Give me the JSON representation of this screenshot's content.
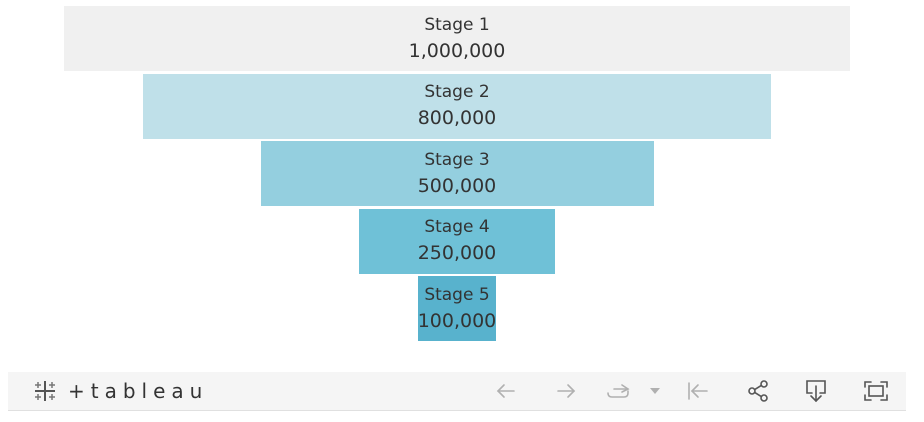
{
  "chart_data": {
    "type": "funnel",
    "categories": [
      "Stage 1",
      "Stage 2",
      "Stage 3",
      "Stage 4",
      "Stage 5"
    ],
    "values": [
      1000000,
      800000,
      500000,
      250000,
      100000
    ],
    "value_labels": [
      "1,000,000",
      "800,000",
      "500,000",
      "250,000",
      "100,000"
    ],
    "colors": [
      "#f0f0f0",
      "#bfe0e9",
      "#94cfdf",
      "#6fc1d7",
      "#58b2cd"
    ],
    "label_color": "#333333"
  },
  "toolbar": {
    "brand": "tableau",
    "icons": {
      "logo": "tableau-logo-icon",
      "undo": "undo-arrow-icon",
      "redo": "redo-arrow-icon",
      "revert": "revert-icon",
      "dropdown": "chevron-down-icon",
      "reset": "reset-to-start-icon",
      "share": "share-icon",
      "download": "download-icon",
      "fullscreen": "fullscreen-icon"
    },
    "icon_color": "#9a9a9a",
    "icon_color_active": "#555555"
  }
}
